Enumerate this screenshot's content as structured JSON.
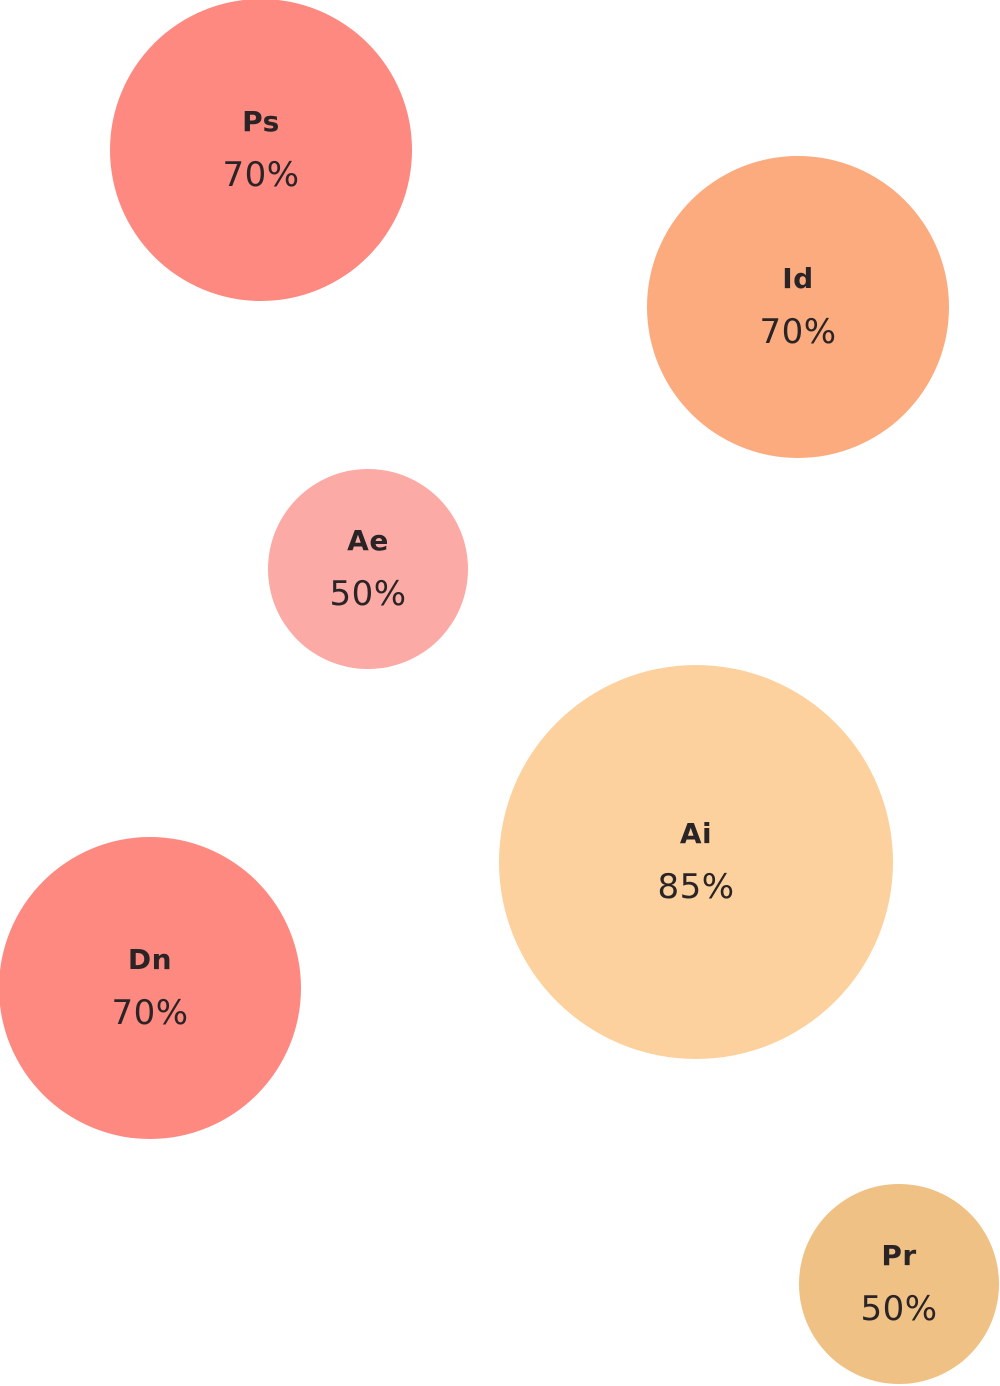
{
  "chart_data": {
    "type": "bubble",
    "title": "",
    "series": [
      {
        "label": "Ps",
        "value_text": "70%",
        "value": 70,
        "color": "#fd8980"
      },
      {
        "label": "Id",
        "value_text": "70%",
        "value": 70,
        "color": "#fbab7e"
      },
      {
        "label": "Ae",
        "value_text": "50%",
        "value": 50,
        "color": "#fcaaa5"
      },
      {
        "label": "Ai",
        "value_text": "85%",
        "value": 85,
        "color": "#fdd19d"
      },
      {
        "label": "Dn",
        "value_text": "70%",
        "value": 70,
        "color": "#fd8980"
      },
      {
        "label": "Pr",
        "value_text": "50%",
        "value": 50,
        "color": "#efc184"
      }
    ]
  }
}
